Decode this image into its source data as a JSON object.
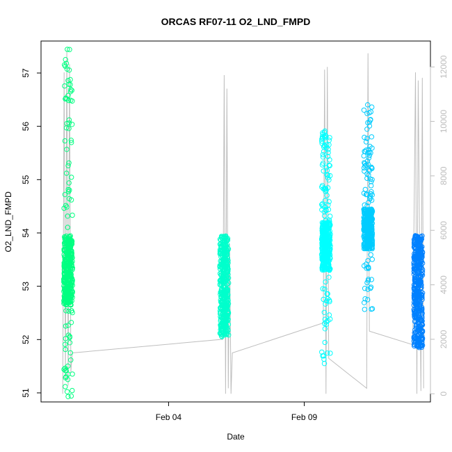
{
  "chart_data": {
    "type": "scatter",
    "title": "ORCAS RF07-11 O2_LND_FMPD",
    "xlabel": "Date",
    "ylabel": "O2_LND_FMPD",
    "x_ticks": [
      {
        "label": "Feb 04",
        "day": 4.0
      },
      {
        "label": "Feb 09",
        "day": 9.0
      }
    ],
    "xlim_days": [
      -0.7,
      13.65
    ],
    "ylim": [
      50.83,
      57.6
    ],
    "yticks": [
      51,
      52,
      53,
      54,
      55,
      56,
      57
    ],
    "y2lim": [
      -300,
      12950
    ],
    "y2ticks": [
      0,
      2000,
      4000,
      6000,
      8000,
      10000,
      12000
    ],
    "grid": false,
    "flights": [
      {
        "color": "#00ff80",
        "day": 0.3,
        "core": [
          52.65,
          53.95
        ],
        "upper": 57.45,
        "lower": 50.92
      },
      {
        "color": "#00ffcc",
        "day": 6.05,
        "core": [
          52.05,
          53.95
        ],
        "upper": null,
        "lower": null
      },
      {
        "color": "#00ffff",
        "day": 9.8,
        "core": [
          53.3,
          54.2
        ],
        "upper": 55.92,
        "lower": 51.55
      },
      {
        "color": "#00ccff",
        "day": 11.35,
        "core": [
          53.7,
          54.45
        ],
        "upper": 56.42,
        "lower": 52.55
      },
      {
        "color": "#0080ff",
        "day": 13.2,
        "core": [
          51.85,
          53.95
        ],
        "upper": null,
        "lower": null
      }
    ],
    "altitude_series": {
      "color": "#bebebe",
      "points": [
        [
          0.1,
          0
        ],
        [
          0.15,
          11800
        ],
        [
          0.2,
          500
        ],
        [
          0.25,
          12600
        ],
        [
          0.3,
          300
        ],
        [
          0.35,
          12100
        ],
        [
          0.4,
          800
        ],
        [
          0.45,
          1500
        ],
        [
          6.0,
          2000
        ],
        [
          6.05,
          11700
        ],
        [
          6.1,
          0
        ],
        [
          6.15,
          11200
        ],
        [
          6.2,
          200
        ],
        [
          6.25,
          5500
        ],
        [
          6.3,
          0
        ],
        [
          6.35,
          1500
        ],
        [
          9.7,
          2600
        ],
        [
          9.75,
          11900
        ],
        [
          9.8,
          0
        ],
        [
          9.85,
          12000
        ],
        [
          9.9,
          1300
        ],
        [
          11.3,
          200
        ],
        [
          11.35,
          12500
        ],
        [
          11.4,
          2300
        ],
        [
          13.0,
          1800
        ],
        [
          13.1,
          11800
        ],
        [
          13.15,
          0
        ],
        [
          13.2,
          11500
        ],
        [
          13.3,
          100
        ],
        [
          13.35,
          11600
        ],
        [
          13.4,
          200
        ]
      ]
    }
  }
}
